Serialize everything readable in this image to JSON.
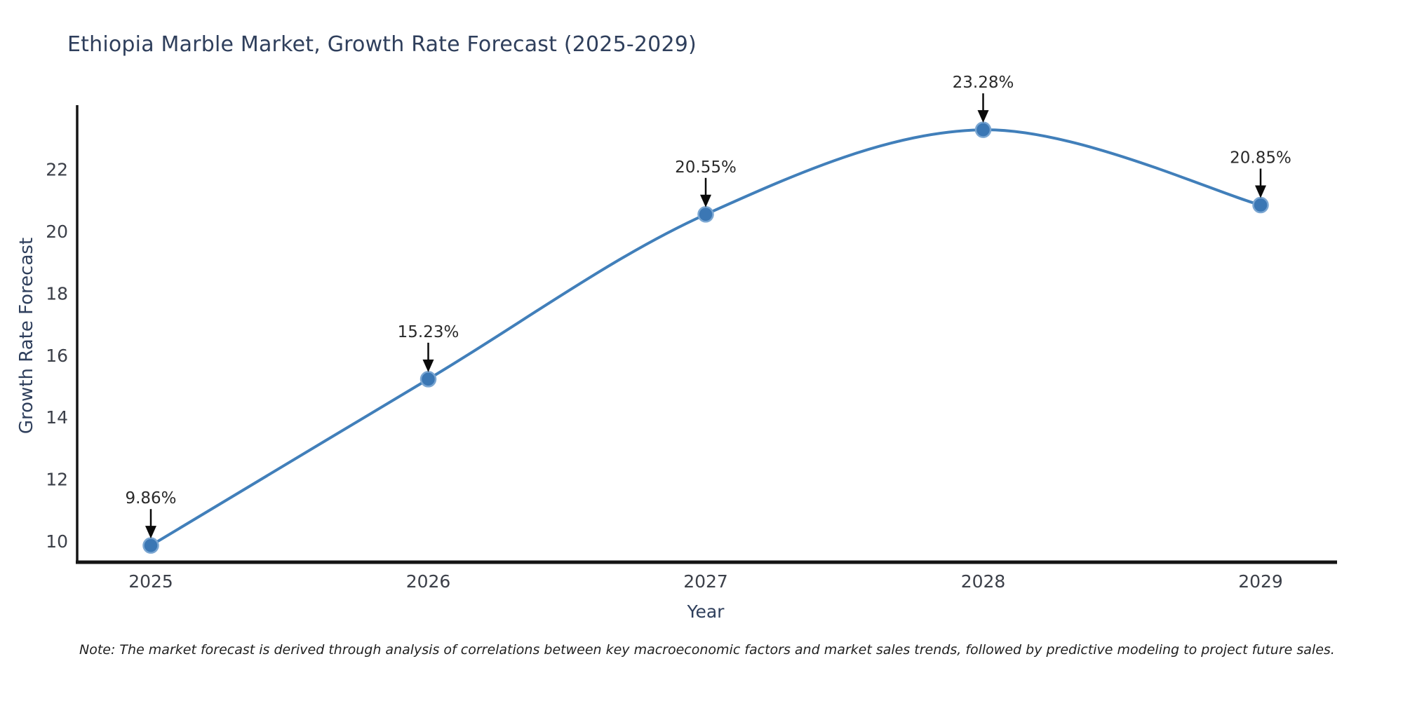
{
  "chart_data": {
    "type": "line",
    "title": "Ethiopia Marble Market, Growth Rate Forecast (2025-2029)",
    "xlabel": "Year",
    "ylabel": "Growth Rate Forecast",
    "x": [
      "2025",
      "2026",
      "2027",
      "2028",
      "2029"
    ],
    "values": [
      9.86,
      15.23,
      20.55,
      23.28,
      20.85
    ],
    "point_labels": [
      "9.86%",
      "15.23%",
      "20.55%",
      "23.28%",
      "20.85%"
    ],
    "yticks": [
      10,
      12,
      14,
      16,
      18,
      20,
      22
    ],
    "ylim": [
      9.3,
      24.1
    ],
    "grid": false,
    "legend": "none",
    "line_shape": "spline",
    "annotations_arrow": "down-black"
  },
  "note": "Note: The market forecast is derived through analysis of correlations between key macroeconomic factors and market sales trends, followed by predictive modeling to project future sales.",
  "colors": {
    "line": "#417fba",
    "marker_fill": "#3b77b4",
    "marker_edge": "#7aa6d2",
    "spine": "#151515",
    "title": "#2f3f5c",
    "axis_label": "#2f3f5c",
    "tick_label": "#3c4049",
    "annotation_text": "#2a2a2a",
    "arrow": "#0a0a0a",
    "background": "#ffffff"
  }
}
